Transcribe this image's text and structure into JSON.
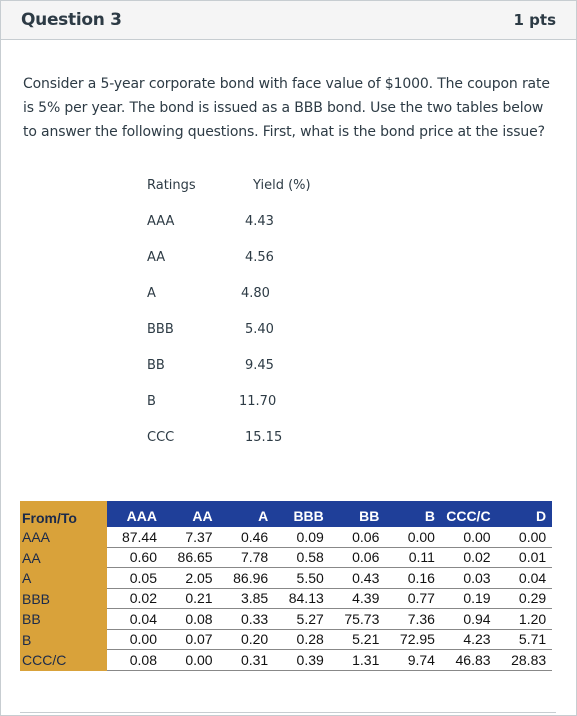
{
  "question": {
    "title": "Question 3",
    "points": "1 pts",
    "text": "Consider a 5-year corporate bond with face value of $1000. The coupon rate is 5% per year. The bond is issued as a BBB bond. Use the two tables below to answer the following questions. First, what is the bond price at the issue?"
  },
  "yield_table": {
    "header_rating": "Ratings",
    "header_yield": "Yield (%)",
    "rows": [
      {
        "rating": "AAA",
        "yield": "4.43"
      },
      {
        "rating": "AA",
        "yield": "4.56"
      },
      {
        "rating": "A",
        "yield": "4.80"
      },
      {
        "rating": "BBB",
        "yield": "5.40"
      },
      {
        "rating": "BB",
        "yield": "9.45"
      },
      {
        "rating": "B",
        "yield": "11.70"
      },
      {
        "rating": "CCC",
        "yield": "15.15"
      }
    ]
  },
  "transition_matrix": {
    "corner": "From/To",
    "columns": [
      "AAA",
      "AA",
      "A",
      "BBB",
      "BB",
      "B",
      "CCC/C",
      "D"
    ],
    "rows": [
      {
        "label": "AAA",
        "values": [
          "87.44",
          "7.37",
          "0.46",
          "0.09",
          "0.06",
          "0.00",
          "0.00",
          "0.00"
        ]
      },
      {
        "label": "AA",
        "values": [
          "0.60",
          "86.65",
          "7.78",
          "0.58",
          "0.06",
          "0.11",
          "0.02",
          "0.01"
        ]
      },
      {
        "label": "A",
        "values": [
          "0.05",
          "2.05",
          "86.96",
          "5.50",
          "0.43",
          "0.16",
          "0.03",
          "0.04"
        ]
      },
      {
        "label": "BBB",
        "values": [
          "0.02",
          "0.21",
          "3.85",
          "84.13",
          "4.39",
          "0.77",
          "0.19",
          "0.29"
        ]
      },
      {
        "label": "BB",
        "values": [
          "0.04",
          "0.08",
          "0.33",
          "5.27",
          "75.73",
          "7.36",
          "0.94",
          "1.20"
        ]
      },
      {
        "label": "B",
        "values": [
          "0.00",
          "0.07",
          "0.20",
          "0.28",
          "5.21",
          "72.95",
          "4.23",
          "5.71"
        ]
      },
      {
        "label": "CCC/C",
        "values": [
          "0.08",
          "0.00",
          "0.31",
          "0.39",
          "1.31",
          "9.74",
          "46.83",
          "28.83"
        ]
      }
    ]
  },
  "colors": {
    "header_bg": "#f5f5f5",
    "matrix_header_bg": "#1f3f99",
    "matrix_label_bg": "#d9a23a",
    "text": "#2d3b45"
  }
}
